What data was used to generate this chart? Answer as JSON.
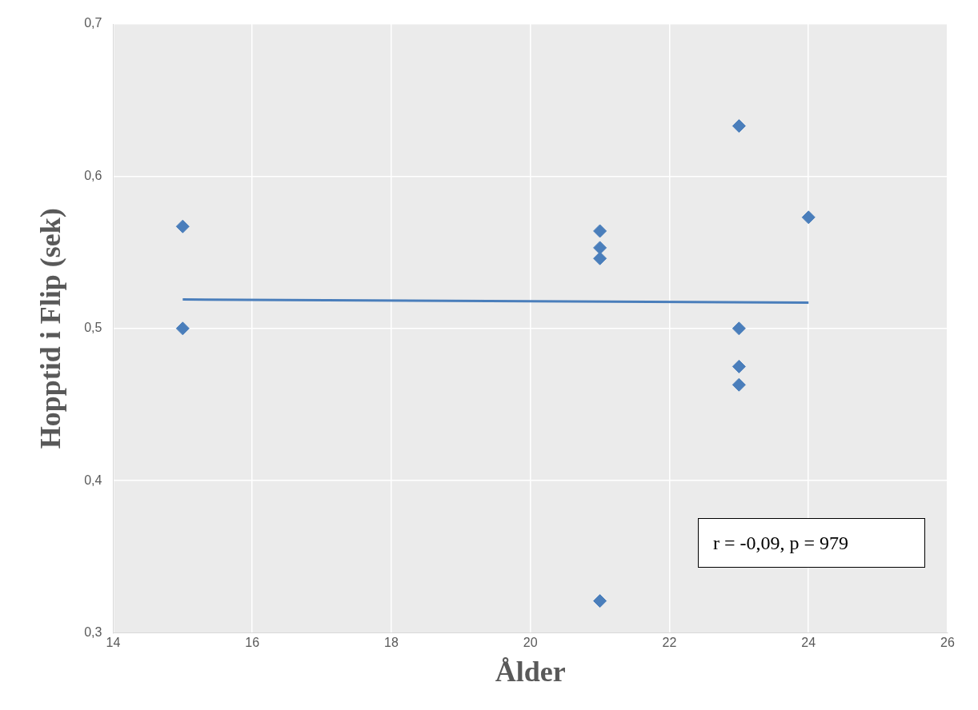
{
  "chart_data": {
    "type": "scatter",
    "xlabel": "Ålder",
    "ylabel": "Hopptid i Flip (sek)",
    "xlim": [
      14,
      26
    ],
    "xticks": [
      14,
      16,
      18,
      20,
      22,
      24,
      26
    ],
    "ylim": [
      0.3,
      0.7
    ],
    "yticks": [
      {
        "value": 0.3,
        "label": "0,3"
      },
      {
        "value": 0.4,
        "label": "0,4"
      },
      {
        "value": 0.5,
        "label": "0,5"
      },
      {
        "value": 0.6,
        "label": "0,6"
      },
      {
        "value": 0.7,
        "label": "0,7"
      }
    ],
    "grid": true,
    "series": [
      {
        "color": "#4a7ebb",
        "marker": "diamond",
        "x": [
          15,
          15,
          21,
          21,
          21,
          21,
          23,
          23,
          23,
          23,
          24
        ],
        "values": [
          0.567,
          0.5,
          0.564,
          0.553,
          0.546,
          0.321,
          0.633,
          0.5,
          0.475,
          0.463,
          0.573
        ]
      },
      {
        "type": "line",
        "color": "#4a7ebb",
        "marker": "none",
        "x": [
          15,
          24
        ],
        "values": [
          0.519,
          0.517
        ]
      }
    ],
    "annotations": [
      "r = -0,09, p = 979"
    ]
  }
}
